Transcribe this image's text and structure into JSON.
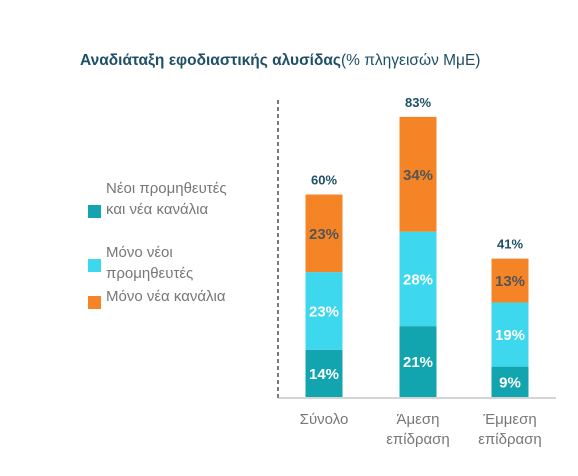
{
  "title": {
    "bold": "Αναδιάταξη εφοδιαστικής αλυσίδας",
    "normal": "(% πληγεισών ΜμΕ)"
  },
  "legend": [
    {
      "label": "Νέοι προμηθευτές και νέα κανάλια",
      "color": "#12a5b0"
    },
    {
      "label": "Μόνο νέοι προμηθευτές",
      "color": "#3dd8ee"
    },
    {
      "label": "Μόνο νέα κανάλια",
      "color": "#f58427"
    }
  ],
  "chart_data": {
    "type": "bar",
    "stacked": true,
    "categories": [
      "Σύνολο",
      "Άμεση επίδραση",
      "Έμμεση επίδραση"
    ],
    "series": [
      {
        "name": "Νέοι προμηθευτές και νέα κανάλια",
        "values": [
          14,
          21,
          9
        ],
        "color": "#12a5b0"
      },
      {
        "name": "Μόνο νέοι προμηθευτές",
        "values": [
          23,
          28,
          19
        ],
        "color": "#3dd8ee"
      },
      {
        "name": "Μόνο νέα κανάλια",
        "values": [
          23,
          34,
          13
        ],
        "color": "#f58427"
      }
    ],
    "totals": [
      60,
      83,
      41
    ],
    "value_suffix": "%",
    "ylim": [
      0,
      90
    ]
  }
}
